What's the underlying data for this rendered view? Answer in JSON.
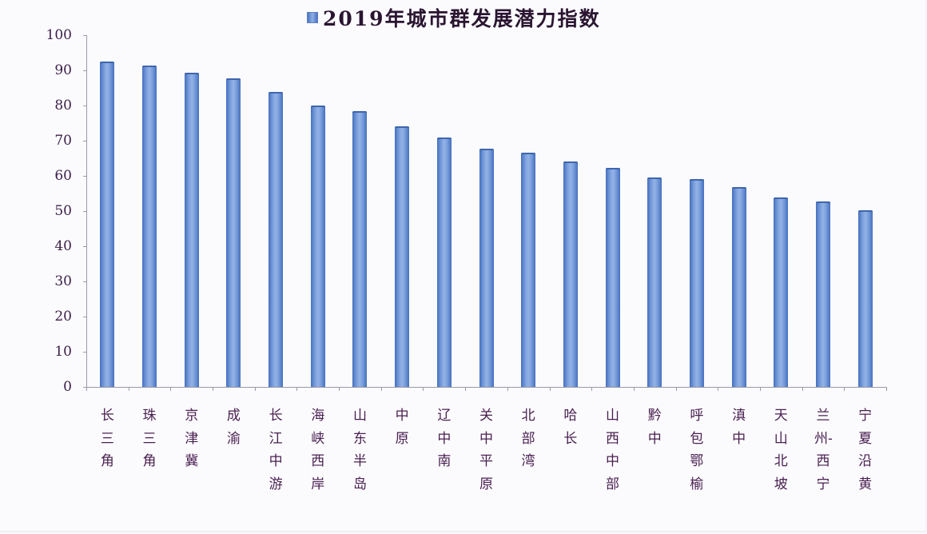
{
  "chart_data": {
    "type": "bar",
    "title": "2019年城市群发展潜力指数",
    "legend": [
      {
        "name": "2019年城市群发展潜力指数",
        "color": "#6f93d6"
      }
    ],
    "legend_position": "top",
    "xlabel": "",
    "ylabel": "",
    "ylim": [
      0,
      100
    ],
    "yticks": [
      0,
      10,
      20,
      30,
      40,
      50,
      60,
      70,
      80,
      90,
      100
    ],
    "grid": false,
    "categories": [
      "长三角",
      "珠三角",
      "京津冀",
      "成渝",
      "长江中游",
      "海峡西岸",
      "山东半岛",
      "中原",
      "辽中南",
      "关中平原",
      "北部湾",
      "哈长",
      "山西中部",
      "黔中",
      "呼包鄂榆",
      "滇中",
      "天山北坡",
      "兰州-西宁",
      "宁夏沿黄"
    ],
    "series": [
      {
        "name": "2019年城市群发展潜力指数",
        "values": [
          92.4,
          91.3,
          89.3,
          87.7,
          83.8,
          79.9,
          78.5,
          74.0,
          71.0,
          67.7,
          66.7,
          64.1,
          62.2,
          59.5,
          59.1,
          56.8,
          53.9,
          52.7,
          50.3
        ]
      }
    ],
    "colors": {
      "bar": "#6f93d6",
      "bar_edge": "#4470bd",
      "title": "#2a1530",
      "tick_label": "#3b1f48",
      "axis": "#9a9aa6"
    }
  }
}
